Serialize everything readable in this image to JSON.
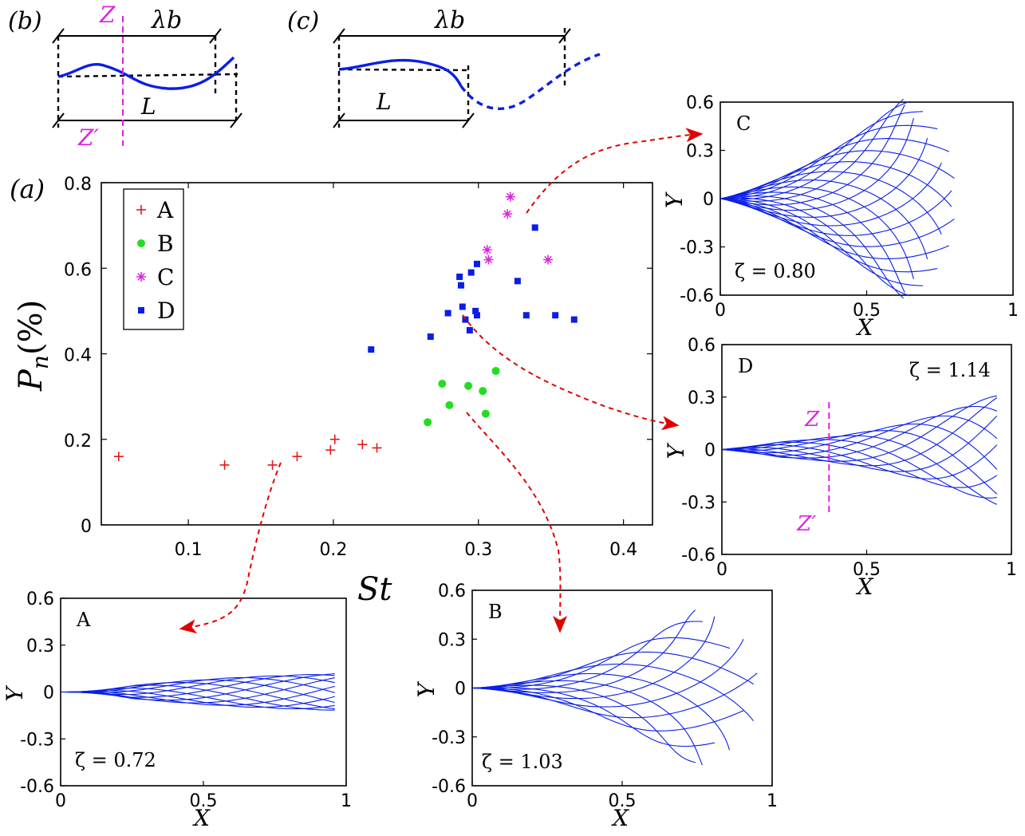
{
  "colors": {
    "A": "#e41a1c",
    "B": "#22dd22",
    "C": "#dd22dd",
    "D": "#0a1ee6",
    "wave": "#0a1ee6",
    "arrow": "#e00000",
    "z_line": "#dd22dd"
  },
  "chart_data": [
    {
      "type": "scatter",
      "panel_label": "(a)",
      "xlabel": "St",
      "ylabel": "P_n(%)",
      "xlim": [
        0.04,
        0.42
      ],
      "ylim": [
        0,
        0.8
      ],
      "xticks": [
        0.1,
        0.2,
        0.3,
        0.4
      ],
      "yticks": [
        0,
        0.2,
        0.4,
        0.6,
        0.8
      ],
      "xtick_labels": [
        "0.1",
        "0.2",
        "0.3",
        "0.4"
      ],
      "ytick_labels": [
        "0",
        "0.2",
        "0.4",
        "0.6",
        "0.8"
      ],
      "grid": false,
      "legend": "top-left",
      "series": [
        {
          "name": "A",
          "marker": "plus",
          "points": [
            [
              0.052,
              0.16
            ],
            [
              0.125,
              0.14
            ],
            [
              0.158,
              0.14
            ],
            [
              0.175,
              0.16
            ],
            [
              0.198,
              0.175
            ],
            [
              0.201,
              0.2
            ],
            [
              0.22,
              0.188
            ],
            [
              0.23,
              0.18
            ]
          ]
        },
        {
          "name": "B",
          "marker": "circle",
          "points": [
            [
              0.265,
              0.24
            ],
            [
              0.275,
              0.33
            ],
            [
              0.28,
              0.28
            ],
            [
              0.293,
              0.325
            ],
            [
              0.303,
              0.313
            ],
            [
              0.305,
              0.26
            ],
            [
              0.312,
              0.36
            ]
          ]
        },
        {
          "name": "C",
          "marker": "asterisk",
          "points": [
            [
              0.306,
              0.643
            ],
            [
              0.307,
              0.62
            ],
            [
              0.32,
              0.727
            ],
            [
              0.322,
              0.767
            ],
            [
              0.348,
              0.62
            ]
          ]
        },
        {
          "name": "D",
          "marker": "square",
          "points": [
            [
              0.226,
              0.41
            ],
            [
              0.267,
              0.44
            ],
            [
              0.279,
              0.495
            ],
            [
              0.287,
              0.58
            ],
            [
              0.288,
              0.56
            ],
            [
              0.289,
              0.51
            ],
            [
              0.291,
              0.48
            ],
            [
              0.294,
              0.455
            ],
            [
              0.295,
              0.59
            ],
            [
              0.298,
              0.5
            ],
            [
              0.299,
              0.49
            ],
            [
              0.299,
              0.61
            ],
            [
              0.327,
              0.57
            ],
            [
              0.333,
              0.49
            ],
            [
              0.339,
              0.695
            ],
            [
              0.353,
              0.49
            ],
            [
              0.366,
              0.48
            ]
          ]
        }
      ]
    },
    {
      "type": "line",
      "panel_label": "A",
      "annotation": "ζ = 0.72",
      "zeta": 0.72,
      "xlabel": "X",
      "ylabel": "Y",
      "xlim": [
        0,
        1
      ],
      "ylim": [
        -0.6,
        0.6
      ],
      "xtick_labels": [
        "0",
        "0.5",
        "1"
      ],
      "ytick_labels": [
        "0.6",
        "0.3",
        "0",
        "-0.3",
        "-0.6"
      ],
      "envelope": {
        "tip_x": 0.96,
        "max_amplitude": 0.2,
        "lines": 11
      }
    },
    {
      "type": "line",
      "panel_label": "B",
      "annotation": "ζ = 1.03",
      "zeta": 1.03,
      "xlabel": "X",
      "ylabel": "Y",
      "xlim": [
        0,
        1
      ],
      "ylim": [
        -0.6,
        0.6
      ],
      "xtick_labels": [
        "0",
        "0.5",
        "1"
      ],
      "ytick_labels": [
        "0.6",
        "0.3",
        "0",
        "-0.3",
        "-0.6"
      ],
      "envelope": {
        "tip_x": 0.95,
        "max_amplitude": 0.48,
        "lines": 13
      }
    },
    {
      "type": "line",
      "panel_label": "C",
      "annotation": "ζ = 0.80",
      "zeta": 0.8,
      "xlabel": "X",
      "ylabel": "Y",
      "xlim": [
        0,
        1
      ],
      "ylim": [
        -0.6,
        0.6
      ],
      "xtick_labels": [
        "0",
        "0.5",
        "1"
      ],
      "ytick_labels": [
        "0.6",
        "0.3",
        "0",
        "-0.3",
        "-0.6"
      ],
      "envelope": {
        "tip_x": 0.8,
        "max_amplitude": 0.62,
        "lines": 22
      }
    },
    {
      "type": "line",
      "panel_label": "D",
      "annotation": "ζ = 1.14",
      "zeta": 1.14,
      "xlabel": "X",
      "ylabel": "Y",
      "xlim": [
        0,
        1
      ],
      "ylim": [
        -0.6,
        0.6
      ],
      "xtick_labels": [
        "0",
        "0.5",
        "1"
      ],
      "ytick_labels": [
        "0.6",
        "0.3",
        "0",
        "-0.3",
        "-0.6"
      ],
      "envelope": {
        "tip_x": 0.95,
        "max_amplitude": 0.28,
        "lines": 11
      },
      "section_line": {
        "x": 0.37,
        "top_label": "Z",
        "bottom_label": "Z′"
      }
    }
  ],
  "sketch_b": {
    "panel_label": "(b)",
    "wavelength_label": "λb",
    "length_label": "L",
    "z_top": "Z",
    "z_bottom": "Z′"
  },
  "sketch_c": {
    "panel_label": "(c)",
    "wavelength_label": "λb",
    "length_label": "L"
  }
}
